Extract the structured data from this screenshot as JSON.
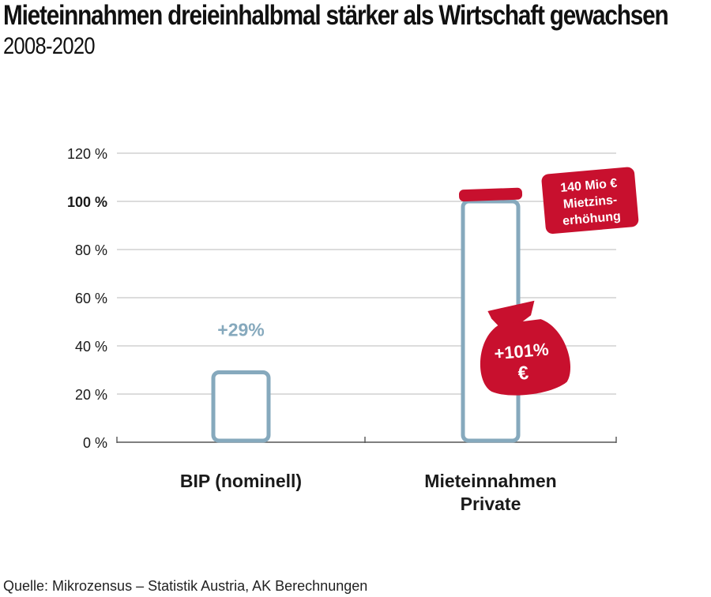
{
  "header": {
    "title": "Mieteinnahmen dreieinhalbmal stärker als Wirtschaft gewachsen",
    "subtitle": "2008-2020"
  },
  "footer": {
    "source": "Quelle: Mikrozensus – Statistik Austria, AK Berechnungen"
  },
  "chart_data": {
    "type": "bar",
    "categories": [
      "BIP (nominell)",
      "Mieteinnahmen Private"
    ],
    "values": [
      29,
      101
    ],
    "data_labels": [
      "+29%",
      "+101% €"
    ],
    "ylim": [
      0,
      120
    ],
    "yticks": [
      0,
      20,
      40,
      60,
      80,
      100,
      120
    ],
    "ytick_labels": [
      "0 %",
      "20 %",
      "40 %",
      "60 %",
      "80 %",
      "100 %",
      "120 %"
    ],
    "emphasized_tick": "100 %",
    "grid": true,
    "annotation": {
      "line1": "140 Mio €",
      "line2": "Mietzins-",
      "line3": "erhöhung"
    },
    "colors": {
      "bar_outline": "#86a9bd",
      "accent_red": "#c8102e",
      "grid": "#c6c6c6",
      "text": "#1a1a1a"
    }
  }
}
